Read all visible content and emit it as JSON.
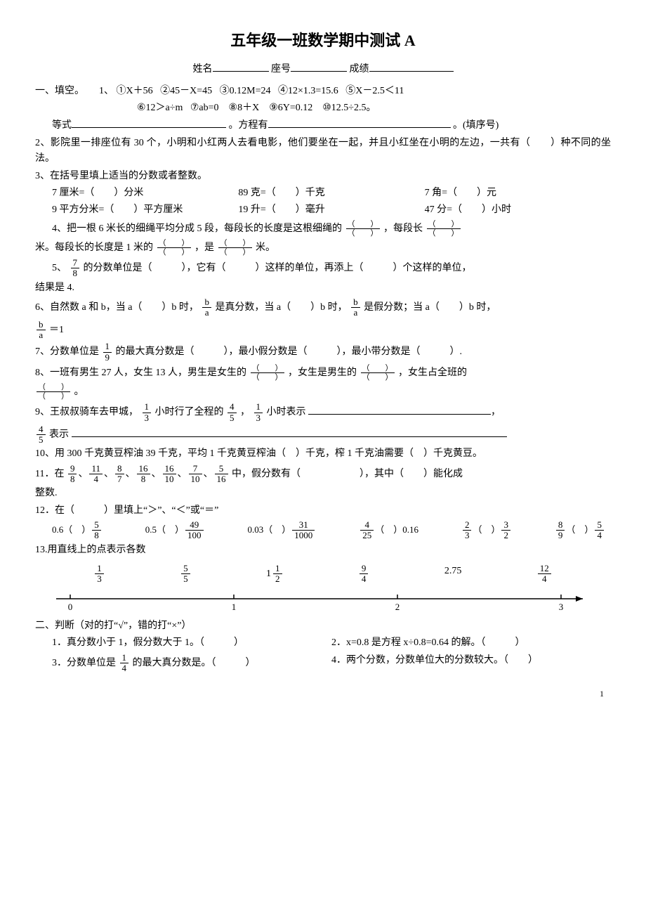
{
  "title": "五年级一班数学期中测试 A",
  "header": {
    "name_label": "姓名",
    "seat_label": "座号",
    "score_label": "成绩"
  },
  "s1": {
    "heading": "一、填空。",
    "q1": {
      "prefix": "1、",
      "items": [
        "①X＋56",
        "②45－X=45",
        "③0.12M=24",
        "④12×1.3=15.6",
        "⑤X－2.5＜11",
        "⑥12＞a÷m",
        "⑦ab=0",
        "⑧8＋X",
        "⑨6Y=0.12",
        "⑩12.5÷2.5。"
      ],
      "eq_label": "等式",
      "fang_label": "。方程有",
      "tail": "。(填序号)"
    },
    "q2": "2、影院里一排座位有 30 个，小明和小红两人去看电影，他们要坐在一起，并且小红坐在小明的左边，一共有（　　）种不同的坐法。",
    "q3_head": "3、在括号里填上适当的分数或者整数。",
    "q3_r1": [
      "7 厘米=（　　）分米",
      "89 克=（　　）千克",
      "7 角=（　　）元"
    ],
    "q3_r2": [
      "9 平方分米=（　　）平方厘米",
      "19 升=（　　）毫升",
      "47 分=（　　）小时"
    ],
    "q4_a": "4、把一根 6 米长的细绳平均分成 5 段，每段长的长度是这根细绳的",
    "q4_b": "，每段长",
    "q4_c": "米。每段长的长度是 1 米的",
    "q4_d": "，是",
    "q4_e": "米。",
    "q5_a": "5、",
    "q5_b": "的分数单位是（　　　），它有（　　　）这样的单位，再添上（　　　）个这样的单位，",
    "q5_c": "结果是 4.",
    "q6_a": "6、自然数 a 和 b，当 a（　　）b 时，",
    "q6_b": "是真分数，当 a（　　）b 时，",
    "q6_c": "是假分数；当 a（　　）b 时，",
    "q6_d": "＝1",
    "q7": "7、分数单位是",
    "q7_b": "的最大真分数是（　　　），最小假分数是（　　　），最小带分数是（　　　）.",
    "q8_a": "8、一班有男生 27 人，女生 13 人，男生是女生的",
    "q8_b": "，女生是男生的",
    "q8_c": "，女生占全班的",
    "q8_d": "。",
    "q9_a": "9、王叔叔骑车去甲城，",
    "q9_b": "小时行了全程的",
    "q9_c": "，",
    "q9_d": "小时表示",
    "q9_e": "表示",
    "q10": "10、用 300 千克黄豆榨油 39 千克，平均 1 千克黄豆榨油（　）千克，榨 1 千克油需要（　）千克黄豆。",
    "q11_a": "11．在",
    "q11_b": "中，假分数有（　　　　　　），其中（　　）能化成",
    "q11_c": "整数.",
    "q12_head": "12．在（　　　）里填上“＞”、“＜”或“＝”",
    "q12_items": [
      {
        "l": "0.6（　）",
        "n": "5",
        "d": "8"
      },
      {
        "l": "0.5（　）",
        "n": "49",
        "d": "100"
      },
      {
        "l": "0.03（　）",
        "n": "31",
        "d": "1000"
      },
      {
        "pre_n": "4",
        "pre_d": "25",
        "l": "（　）0.16"
      },
      {
        "pre_n": "2",
        "pre_d": "3",
        "mid": "（　）",
        "n": "3",
        "d": "2"
      },
      {
        "pre_n": "8",
        "pre_d": "9",
        "mid": "（　）",
        "n": "5",
        "d": "4"
      }
    ],
    "q13_head": "13.用直线上的点表示各数",
    "q13_nums": [
      {
        "n": "1",
        "d": "3"
      },
      {
        "n": "5",
        "d": "5"
      },
      {
        "whole": "1",
        "n": "1",
        "d": "2"
      },
      {
        "n": "9",
        "d": "4"
      },
      {
        "text": "2.75"
      },
      {
        "n": "12",
        "d": "4"
      }
    ],
    "q13_ticks": [
      "0",
      "1",
      "2",
      "3"
    ]
  },
  "s2": {
    "heading": "二、判断（对的打“√”，错的打“×”）",
    "q1": "1．真分数小于 1，假分数大于 1。（　　　）",
    "q2": "2．x=0.8 是方程 x÷0.8=0.64 的解。（　　　）",
    "q3_a": "3．分数单位是",
    "q3_b": "的最大真分数是。（　　　）",
    "q4": "4．两个分数，分数单位大的分数较大。（　　）"
  },
  "fracs": {
    "f7_8": {
      "n": "7",
      "d": "8"
    },
    "fb_a": {
      "n": "b",
      "d": "a"
    },
    "f1_9": {
      "n": "1",
      "d": "9"
    },
    "f1_3": {
      "n": "1",
      "d": "3"
    },
    "f4_5": {
      "n": "4",
      "d": "5"
    },
    "f1_4": {
      "n": "1",
      "d": "4"
    },
    "q11": [
      {
        "n": "9",
        "d": "8"
      },
      {
        "n": "11",
        "d": "4"
      },
      {
        "n": "8",
        "d": "7"
      },
      {
        "n": "16",
        "d": "8"
      },
      {
        "n": "16",
        "d": "10"
      },
      {
        "n": "7",
        "d": "10"
      },
      {
        "n": "5",
        "d": "16"
      }
    ]
  },
  "page_num": "1"
}
